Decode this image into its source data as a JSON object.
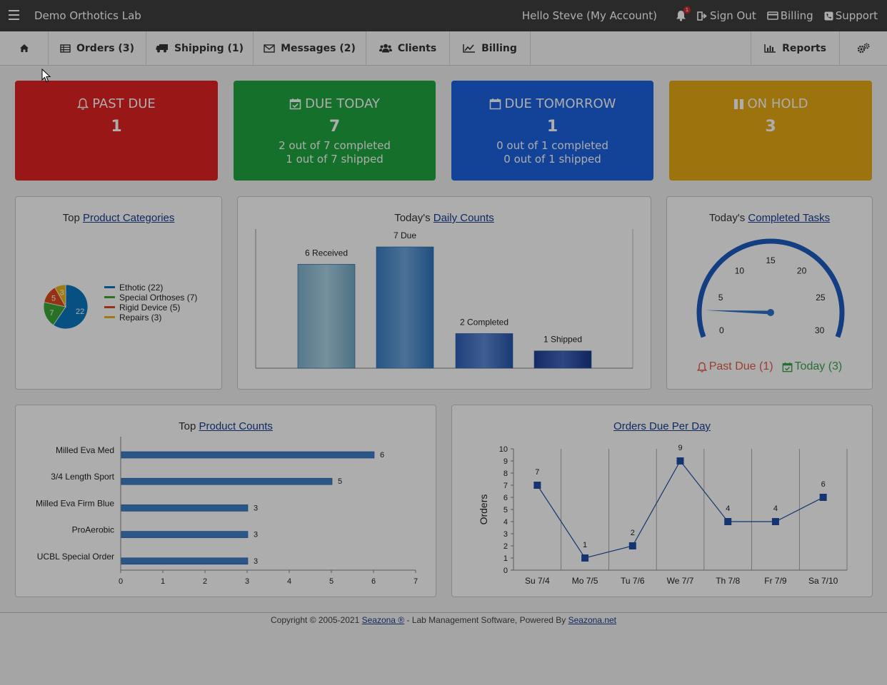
{
  "topbar": {
    "brand": "Demo Orthotics Lab",
    "greeting": "Hello Steve (My Account)",
    "notification_count": "1",
    "sign_out": "Sign Out",
    "billing": "Billing",
    "support": "Support"
  },
  "nav": {
    "orders": "Orders (3)",
    "shipping": "Shipping (1)",
    "messages": "Messages (2)",
    "clients": "Clients",
    "billing": "Billing",
    "reports": "Reports"
  },
  "cards": {
    "past_due": {
      "title": "PAST DUE",
      "count": "1",
      "color": "#e32222"
    },
    "due_today": {
      "title": "DUE TODAY",
      "count": "7",
      "line1": "2 out of 7 completed",
      "line2": "1 out of 7 shipped",
      "color": "#1ea63f"
    },
    "due_tomorrow": {
      "title": "DUE TOMORROW",
      "count": "1",
      "line1": "0 out of 1 completed",
      "line2": "0 out of 1 shipped",
      "color": "#1c64e0"
    },
    "on_hold": {
      "title": "ON HOLD",
      "count": "3",
      "color": "#e6aa14"
    }
  },
  "panels": {
    "categories": {
      "prefix": "Top ",
      "link": "Product Categories"
    },
    "daily": {
      "prefix": "Today's ",
      "link": "Daily Counts"
    },
    "tasks": {
      "prefix": "Today's ",
      "link": "Completed Tasks",
      "past_due": "Past Due (1)",
      "today": "Today (3)"
    },
    "products": {
      "prefix": "Top ",
      "link": "Product Counts"
    },
    "orders_due": {
      "link": "Orders Due Per Day"
    }
  },
  "footer": {
    "prefix": "Copyright © 2005-2021 ",
    "link1": "Seazona ®",
    "middle": " - Lab Management Software, Powered By ",
    "link2": "Seazona.net"
  },
  "chart_data": [
    {
      "type": "pie",
      "categories": [
        "Ethotic",
        "Special Orthoses",
        "Rigid Device",
        "Repairs"
      ],
      "values": [
        22,
        7,
        5,
        3
      ],
      "legend": [
        "Ethotic (22)",
        "Special Orthoses (7)",
        "Rigid Device (5)",
        "Repairs (3)"
      ],
      "colors": [
        "#0b78c0",
        "#3aa836",
        "#de4a1e",
        "#e8b51a"
      ],
      "legend_position": "right"
    },
    {
      "type": "bar",
      "categories": [
        "Received",
        "Due",
        "Completed",
        "Shipped"
      ],
      "values": [
        6,
        7,
        2,
        1
      ],
      "data_labels": [
        "6 Received",
        "7 Due",
        "2 Completed",
        "1 Shipped"
      ],
      "ylim": [
        0,
        7.5
      ]
    },
    {
      "type": "gauge",
      "value": 3,
      "range": [
        0,
        30
      ],
      "ticks": [
        "0",
        "5",
        "10",
        "15",
        "20",
        "25",
        "30"
      ]
    },
    {
      "type": "bar",
      "orientation": "horizontal",
      "categories": [
        "Milled Eva Med",
        "3/4 Length Sport",
        "Milled Eva  Firm Blue",
        "ProAerobic",
        "UCBL Special Order"
      ],
      "values": [
        6,
        5,
        3,
        3,
        3
      ],
      "xlim": [
        0,
        7
      ],
      "xticks": [
        "0",
        "1",
        "2",
        "3",
        "4",
        "5",
        "6",
        "7"
      ],
      "grid": false
    },
    {
      "type": "line",
      "x": [
        "Su 7/4",
        "Mo 7/5",
        "Tu 7/6",
        "We 7/7",
        "Th 7/8",
        "Fr 7/9",
        "Sa 7/10"
      ],
      "values": [
        7,
        1,
        2,
        9,
        4,
        4,
        6
      ],
      "ylabel": "Orders",
      "ylim": [
        0,
        10
      ],
      "yticks": [
        "0",
        "1",
        "2",
        "3",
        "4",
        "5",
        "6",
        "7",
        "8",
        "9",
        "10"
      ],
      "grid": true
    }
  ]
}
